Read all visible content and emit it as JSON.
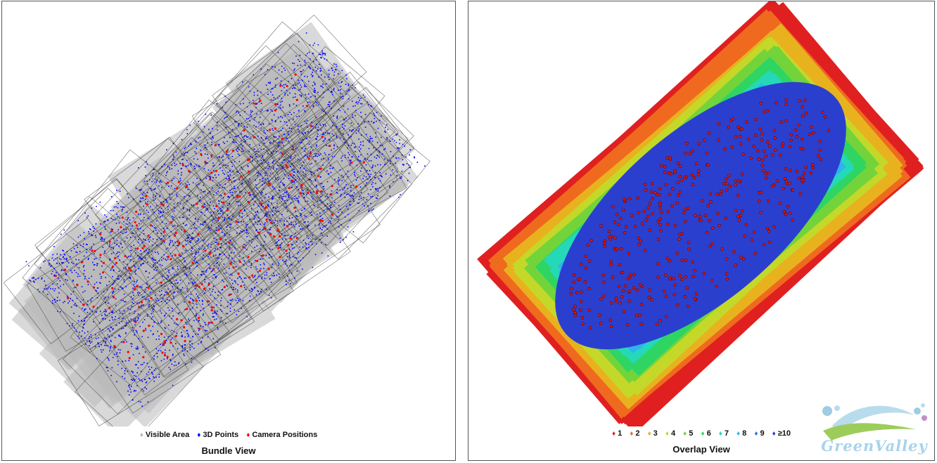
{
  "colors": {
    "visible_area": "#b9b9b9",
    "points_3d": "#0000ff",
    "camera": "#ff0000",
    "overlap": [
      "#e02020",
      "#ef6a1f",
      "#e8b21f",
      "#c4d82a",
      "#72d43a",
      "#2ed562",
      "#25d8b8",
      "#2fb3ef",
      "#2f6fe6",
      "#2b3fcf"
    ]
  },
  "bundle_view": {
    "title": "Bundle View",
    "legend": [
      {
        "icon": "diamond-icon",
        "label": "Visible Area",
        "color": "#b9b9b9"
      },
      {
        "icon": "diamond-icon",
        "label": "3D Points",
        "color": "#0000ff"
      },
      {
        "icon": "diamond-icon",
        "label": "Camera Positions",
        "color": "#ff0000"
      }
    ]
  },
  "overlap_view": {
    "title": "Overlap View",
    "legend": [
      {
        "icon": "diamond-icon",
        "label": "1",
        "color": "#e02020"
      },
      {
        "icon": "diamond-icon",
        "label": "2",
        "color": "#ef6a1f"
      },
      {
        "icon": "diamond-icon",
        "label": "3",
        "color": "#e8b21f"
      },
      {
        "icon": "diamond-icon",
        "label": "4",
        "color": "#c4d82a"
      },
      {
        "icon": "diamond-icon",
        "label": "5",
        "color": "#72d43a"
      },
      {
        "icon": "diamond-icon",
        "label": "6",
        "color": "#2ed562"
      },
      {
        "icon": "diamond-icon",
        "label": "7",
        "color": "#25d8b8"
      },
      {
        "icon": "diamond-icon",
        "label": "8",
        "color": "#2fb3ef"
      },
      {
        "icon": "diamond-icon",
        "label": "9",
        "color": "#2f6fe6"
      },
      {
        "icon": "diamond-icon",
        "label": "≥10",
        "color": "#2b3fcf"
      }
    ]
  },
  "logo": {
    "text": "GreenValley"
  }
}
